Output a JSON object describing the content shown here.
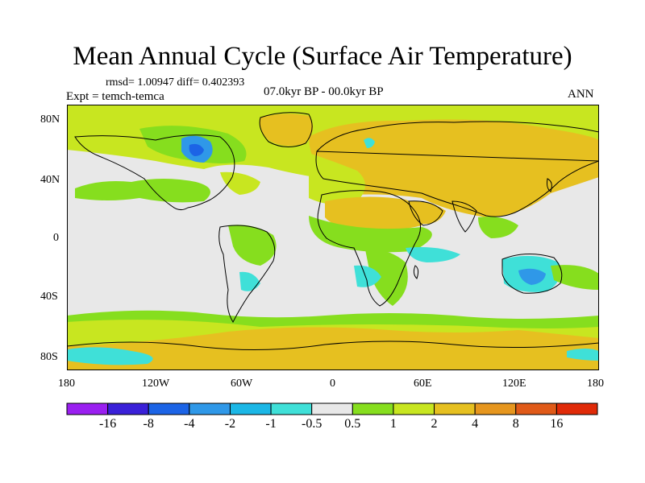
{
  "title": "Mean Annual Cycle (Surface Air Temperature)",
  "stats": "rmsd= 1.00947 diff= 0.402393",
  "experiment": "Expt = temch-temca",
  "period": "07.0kyr BP - 00.0kyr BP",
  "season": "ANN",
  "lat_ticks": [
    "80N",
    "40N",
    "0",
    "40S",
    "80S"
  ],
  "lon_ticks": [
    "180",
    "120W",
    "60W",
    "0",
    "60E",
    "120E",
    "180"
  ],
  "colorbar": {
    "labels": [
      "-16",
      "-8",
      "-4",
      "-2",
      "-1",
      "-0.5",
      "0.5",
      "1",
      "2",
      "4",
      "8",
      "16"
    ],
    "colors": [
      "#9a1ff0",
      "#3a20d8",
      "#1c64e6",
      "#2f98e8",
      "#1bb7e6",
      "#3fe0d8",
      "#e8e8e8",
      "#86de1e",
      "#c8e620",
      "#e6c020",
      "#e6961e",
      "#e05a18",
      "#e02a08"
    ]
  }
}
